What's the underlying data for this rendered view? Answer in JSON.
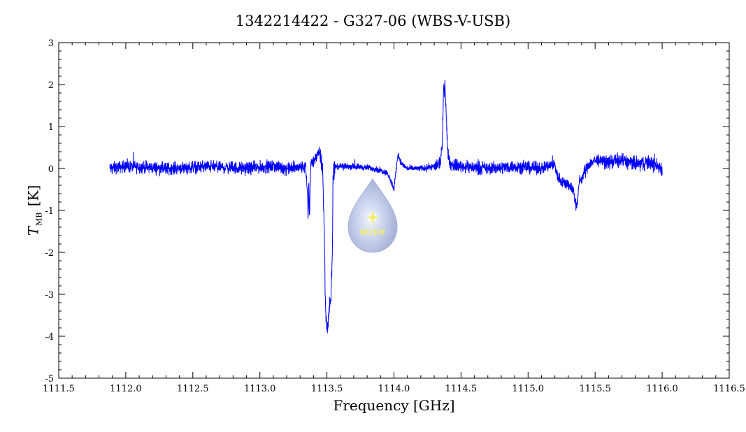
{
  "title": "1342214422 - G327-06 (WBS-V-USB)",
  "xlabel": "Frequency [GHz]",
  "ylabel": {
    "symbol": "T",
    "subscript": "MB",
    "unit": "[K]"
  },
  "logo": {
    "text": "WISH"
  },
  "colors": {
    "line": "#0000ff",
    "axes": "#000000",
    "background": "#ffffff",
    "logo": "#a8b4d8"
  },
  "chart_data": {
    "type": "line",
    "title": "1342214422 - G327-06 (WBS-V-USB)",
    "xlabel": "Frequency [GHz]",
    "ylabel": "T_MB [K]",
    "xlim": [
      1111.5,
      1116.5
    ],
    "ylim": [
      -5,
      3
    ],
    "xticks": [
      "1111.5",
      "1112.0",
      "1112.5",
      "1113.0",
      "1113.5",
      "1114.0",
      "1114.5",
      "1115.0",
      "1115.5",
      "1116.0",
      "1116.5"
    ],
    "yticks": [
      "3",
      "2",
      "1",
      "0",
      "-1",
      "-2",
      "-3",
      "-4",
      "-5"
    ],
    "grid": false,
    "series": [
      {
        "color": "#0000ff",
        "x": [
          1111.88,
          1112.0,
          1112.3,
          1112.6,
          1112.9,
          1113.1,
          1113.2,
          1113.3,
          1113.34,
          1113.355,
          1113.36,
          1113.365,
          1113.37,
          1113.375,
          1113.38,
          1113.4,
          1113.43,
          1113.44,
          1113.45,
          1113.47,
          1113.48,
          1113.49,
          1113.5,
          1113.505,
          1113.51,
          1113.52,
          1113.53,
          1113.54,
          1113.545,
          1113.55,
          1113.57,
          1113.7,
          1113.85,
          1113.95,
          1114.0,
          1114.03,
          1114.045,
          1114.06,
          1114.1,
          1114.2,
          1114.3,
          1114.34,
          1114.36,
          1114.37,
          1114.38,
          1114.39,
          1114.4,
          1114.42,
          1114.5,
          1114.7,
          1114.9,
          1115.1,
          1115.2,
          1115.22,
          1115.25,
          1115.3,
          1115.34,
          1115.36,
          1115.37,
          1115.38,
          1115.4,
          1115.45,
          1115.5,
          1115.6,
          1115.7,
          1115.8,
          1115.9,
          1116.0
        ],
        "y": [
          0.0,
          0.05,
          0.0,
          0.05,
          0.0,
          0.05,
          0.0,
          0.02,
          0.05,
          -0.6,
          -1.2,
          -0.3,
          -1.2,
          -0.4,
          0.1,
          0.2,
          0.3,
          0.45,
          0.3,
          -0.2,
          -1.4,
          -3.5,
          -3.8,
          -3.85,
          -3.6,
          -3.2,
          -3.1,
          -2.0,
          -0.4,
          0.0,
          0.05,
          0.05,
          0.0,
          -0.1,
          -0.5,
          0.35,
          0.2,
          0.1,
          0.0,
          0.0,
          0.05,
          0.1,
          0.5,
          1.9,
          2.0,
          1.3,
          0.4,
          0.1,
          0.05,
          0.0,
          0.05,
          0.0,
          0.1,
          -0.2,
          -0.3,
          -0.4,
          -0.5,
          -0.95,
          -0.8,
          -0.3,
          -0.25,
          0.1,
          0.2,
          0.15,
          0.2,
          0.1,
          0.15,
          0.0
        ]
      }
    ]
  }
}
